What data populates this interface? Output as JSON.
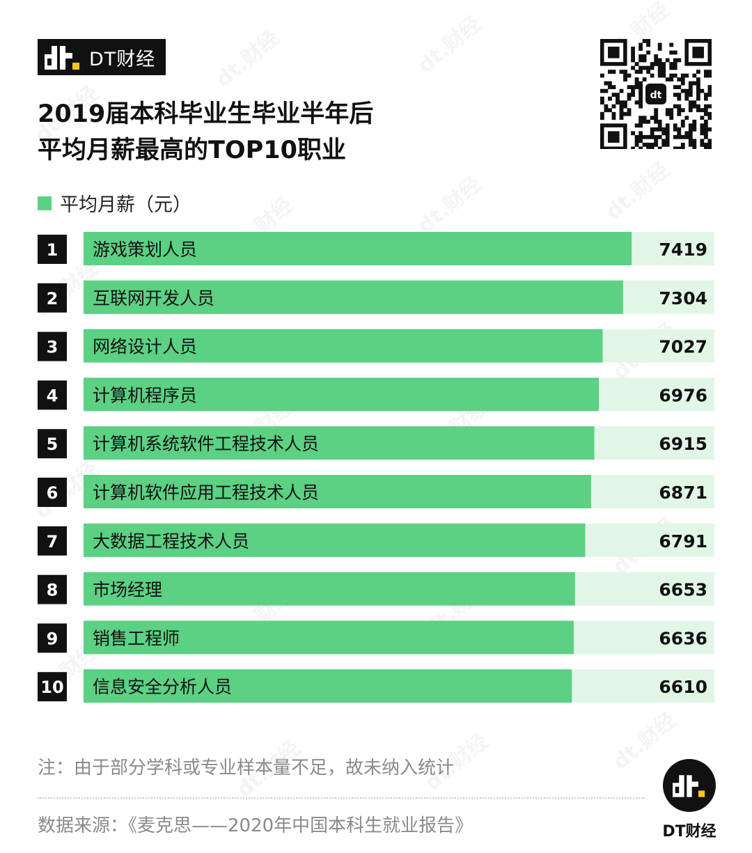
{
  "brand": {
    "name": "DT财经",
    "logo_icon": "dt-logo-icon"
  },
  "title": {
    "line1": "2019届本科毕业生毕业半年后",
    "line2": "平均月薪最高的TOP10职业"
  },
  "qr": {
    "icon": "qr-code-icon"
  },
  "watermark_text": "dt.财经",
  "chart_data": {
    "type": "bar",
    "orientation": "horizontal",
    "categories": [
      "游戏策划人员",
      "互联网开发人员",
      "网络设计人员",
      "计算机程序员",
      "计算机系统软件工程技术人员",
      "计算机软件应用工程技术人员",
      "大数据工程技术人员",
      "市场经理",
      "销售工程师",
      "信息安全分析人员"
    ],
    "ranks": [
      "1",
      "2",
      "3",
      "4",
      "5",
      "6",
      "7",
      "8",
      "9",
      "10"
    ],
    "series": [
      {
        "name": "平均月薪（元）",
        "values": [
          7419,
          7304,
          7027,
          6976,
          6915,
          6871,
          6791,
          6653,
          6636,
          6610
        ]
      }
    ],
    "value_labels": [
      "7419",
      "7304",
      "7027",
      "6976",
      "6915",
      "6871",
      "6791",
      "6653",
      "6636",
      "6610"
    ],
    "xlim": [
      0,
      8540
    ],
    "legend": "top-left",
    "colors": {
      "bar": "#5cd083",
      "track": "#e2f6e8",
      "rank_bg": "#111111",
      "rank_text": "#ffffff"
    }
  },
  "notes": {
    "footnote": "注：由于部分学科或专业样本量不足，故未纳入统计",
    "source": "数据来源：《麦克思——2020年中国本科生就业报告》"
  },
  "footer": {
    "brand": "DT财经"
  }
}
